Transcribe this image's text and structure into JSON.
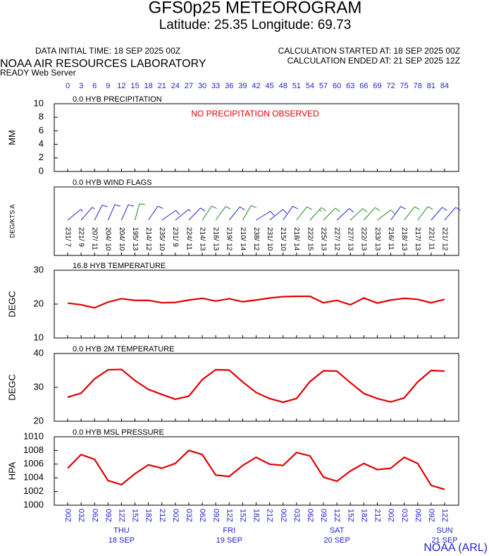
{
  "header": {
    "title": "GFS0p25 METEOROGRAM",
    "subtitle": "Latitude: 25.35 Longitude:  69.73",
    "data_initial": "DATA INITIAL TIME: 18 SEP 2025 00Z",
    "calc_started": "CALCULATION STARTED AT: 18 SEP 2025 00Z",
    "calc_ended": "CALCULATION ENDED AT: 21 SEP 2025 12Z",
    "lab": "NOAA AIR RESOURCES LABORATORY",
    "server": "READY Web Server",
    "credit": "NOAA (ARL)"
  },
  "xlim": [
    0,
    84
  ],
  "x_hours": [
    0,
    3,
    6,
    9,
    12,
    15,
    18,
    21,
    24,
    27,
    30,
    33,
    36,
    39,
    42,
    45,
    48,
    51,
    54,
    57,
    60,
    63,
    66,
    69,
    72,
    75,
    78,
    81,
    84
  ],
  "x_labels": [
    "00Z",
    "03Z",
    "06Z",
    "09Z",
    "12Z",
    "15Z",
    "18Z",
    "21Z",
    "00Z",
    "03Z",
    "06Z",
    "09Z",
    "12Z",
    "15Z",
    "18Z",
    "21Z",
    "00Z",
    "03Z",
    "06Z",
    "09Z",
    "12Z",
    "15Z",
    "18Z",
    "21Z",
    "00Z",
    "03Z",
    "06Z",
    "09Z",
    "12Z"
  ],
  "day_names": [
    null,
    null,
    null,
    null,
    "THU",
    null,
    null,
    null,
    null,
    null,
    null,
    null,
    "FRI",
    null,
    null,
    null,
    null,
    null,
    null,
    null,
    "SAT",
    null,
    null,
    null,
    null,
    null,
    null,
    null,
    "SUN"
  ],
  "day_dates": [
    null,
    null,
    null,
    null,
    "18 SEP",
    null,
    null,
    null,
    null,
    null,
    null,
    null,
    "19 SEP",
    null,
    null,
    null,
    null,
    null,
    null,
    null,
    "20 SEP",
    null,
    null,
    null,
    null,
    null,
    null,
    null,
    "21 SEP"
  ],
  "chart_data": [
    {
      "type": "message",
      "title": "0.0 HYB PRECIPITATION",
      "message": "NO PRECIPITATION OBSERVED",
      "ylabel": "MM",
      "ylim": [
        0,
        10
      ],
      "yticks": [
        0,
        2,
        4,
        6,
        8,
        10
      ]
    },
    {
      "type": "wind",
      "title": "0.0 HYB WIND FLAGS",
      "ylabel": "DEG/KTS  A",
      "directions": [
        231,
        221,
        207,
        204,
        204,
        195,
        214,
        235,
        231,
        224,
        214,
        216,
        219,
        210,
        238,
        231,
        215,
        218,
        222,
        225,
        227,
        227,
        222,
        233,
        216,
        218,
        217,
        221,
        221
      ],
      "speeds": [
        7,
        9,
        11,
        10,
        10,
        13,
        12,
        10,
        9,
        11,
        13,
        13,
        12,
        14,
        12,
        10,
        10,
        14,
        15,
        13,
        12,
        13,
        13,
        13,
        11,
        13,
        13,
        11,
        12
      ],
      "value_labels": [
        "231/ 7",
        "221/ 9",
        "207/ 11",
        "204/ 10",
        "204/ 10",
        "195/ 13",
        "214/ 12",
        "235/ 10",
        "231/ 9",
        "224/ 11",
        "214/ 13",
        "216/ 13",
        "219/ 12",
        "210/ 14",
        "238/ 12",
        "231/ 10",
        "215/ 10",
        "218/ 14",
        "222/ 15",
        "225/ 13",
        "227/ 12",
        "227/ 13",
        "222/ 13",
        "233/ 13",
        "216/ 11",
        "218/ 13",
        "217/ 13",
        "221/ 11",
        "221/ 12"
      ],
      "colors": [
        "#2323d0",
        "#2323d0",
        "#2323d0",
        "#2323d0",
        "#2323d0",
        "#1e8a1e",
        "#2323d0",
        "#2323d0",
        "#2323d0",
        "#2323d0",
        "#1e8a1e",
        "#1e8a1e",
        "#2323d0",
        "#1e8a1e",
        "#2323d0",
        "#2323d0",
        "#2323d0",
        "#1e8a1e",
        "#1e8a1e",
        "#1e8a1e",
        "#2323d0",
        "#1e8a1e",
        "#1e8a1e",
        "#1e8a1e",
        "#2323d0",
        "#1e8a1e",
        "#1e8a1e",
        "#2323d0",
        "#2323d0"
      ]
    },
    {
      "type": "line",
      "title": "16.8 HYB TEMPERATURE",
      "ylabel": "DEGC",
      "ylim": [
        10,
        30
      ],
      "yticks": [
        10,
        20,
        30
      ],
      "color": "#e00000",
      "values": [
        20.3,
        19.8,
        18.9,
        20.6,
        21.6,
        21.1,
        21.1,
        20.4,
        20.5,
        21.2,
        21.7,
        20.9,
        21.6,
        20.7,
        21.2,
        21.8,
        22.2,
        22.3,
        22.3,
        20.4,
        21.1,
        19.8,
        21.8,
        20.3,
        21.2,
        21.7,
        21.4,
        20.4,
        21.4
      ]
    },
    {
      "type": "line",
      "title": "0.0 HYB 2M TEMPERATURE",
      "ylabel": "DEGC",
      "ylim": [
        20,
        40
      ],
      "yticks": [
        20,
        30,
        40
      ],
      "color": "#e00000",
      "values": [
        27.1,
        28.3,
        32.5,
        35.2,
        35.3,
        32.0,
        29.4,
        27.9,
        26.5,
        27.4,
        32.3,
        35.2,
        35.1,
        31.6,
        28.5,
        26.7,
        25.6,
        26.7,
        31.7,
        34.9,
        34.8,
        31.4,
        28.2,
        26.7,
        25.7,
        26.9,
        31.6,
        35.0,
        34.8
      ]
    },
    {
      "type": "line",
      "title": "0.0 HYB MSL PRESSURE",
      "ylabel": "HPA",
      "ylim": [
        1000,
        1010
      ],
      "yticks": [
        1000,
        1002,
        1004,
        1006,
        1008,
        1010
      ],
      "color": "#e00000",
      "values": [
        1005.4,
        1007.4,
        1006.7,
        1003.6,
        1003.0,
        1004.6,
        1005.9,
        1005.4,
        1006.1,
        1008.0,
        1007.4,
        1004.4,
        1004.2,
        1005.8,
        1007.0,
        1006.0,
        1005.8,
        1007.7,
        1007.2,
        1004.1,
        1003.5,
        1005.0,
        1006.1,
        1005.2,
        1005.4,
        1007.0,
        1006.1,
        1002.9,
        1002.3
      ]
    }
  ]
}
